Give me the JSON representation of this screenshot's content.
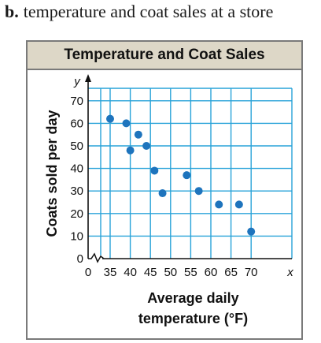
{
  "caption": {
    "letter": "b.",
    "text": "temperature and coat sales at a store"
  },
  "colors": {
    "grid": "#29a3d9",
    "point": "#1e74bd",
    "title_bg": "#ddd7c7",
    "frame": "#7a7a7a"
  },
  "chart_data": {
    "type": "scatter",
    "title": "Temperature and Coat Sales",
    "xlabel": "Average daily temperature (°F)",
    "xlabel_lines": [
      "Average daily",
      "temperature (°F)"
    ],
    "ylabel": "Coats sold per day",
    "x_var": "x",
    "y_var": "y",
    "xlim": [
      30,
      72
    ],
    "ylim": [
      0,
      74
    ],
    "x_axis_break": true,
    "x_ticks": [
      "0",
      "35",
      "40",
      "45",
      "50",
      "55",
      "60",
      "65",
      "70"
    ],
    "y_ticks": [
      "0",
      "10",
      "20",
      "30",
      "40",
      "50",
      "60",
      "70"
    ],
    "grid": true,
    "points": [
      {
        "x": 35,
        "y": 62
      },
      {
        "x": 39,
        "y": 60
      },
      {
        "x": 40,
        "y": 48
      },
      {
        "x": 42,
        "y": 55
      },
      {
        "x": 44,
        "y": 50
      },
      {
        "x": 46,
        "y": 39
      },
      {
        "x": 48,
        "y": 29
      },
      {
        "x": 54,
        "y": 37
      },
      {
        "x": 57,
        "y": 30
      },
      {
        "x": 62,
        "y": 24
      },
      {
        "x": 67,
        "y": 24
      },
      {
        "x": 70,
        "y": 12
      }
    ]
  }
}
